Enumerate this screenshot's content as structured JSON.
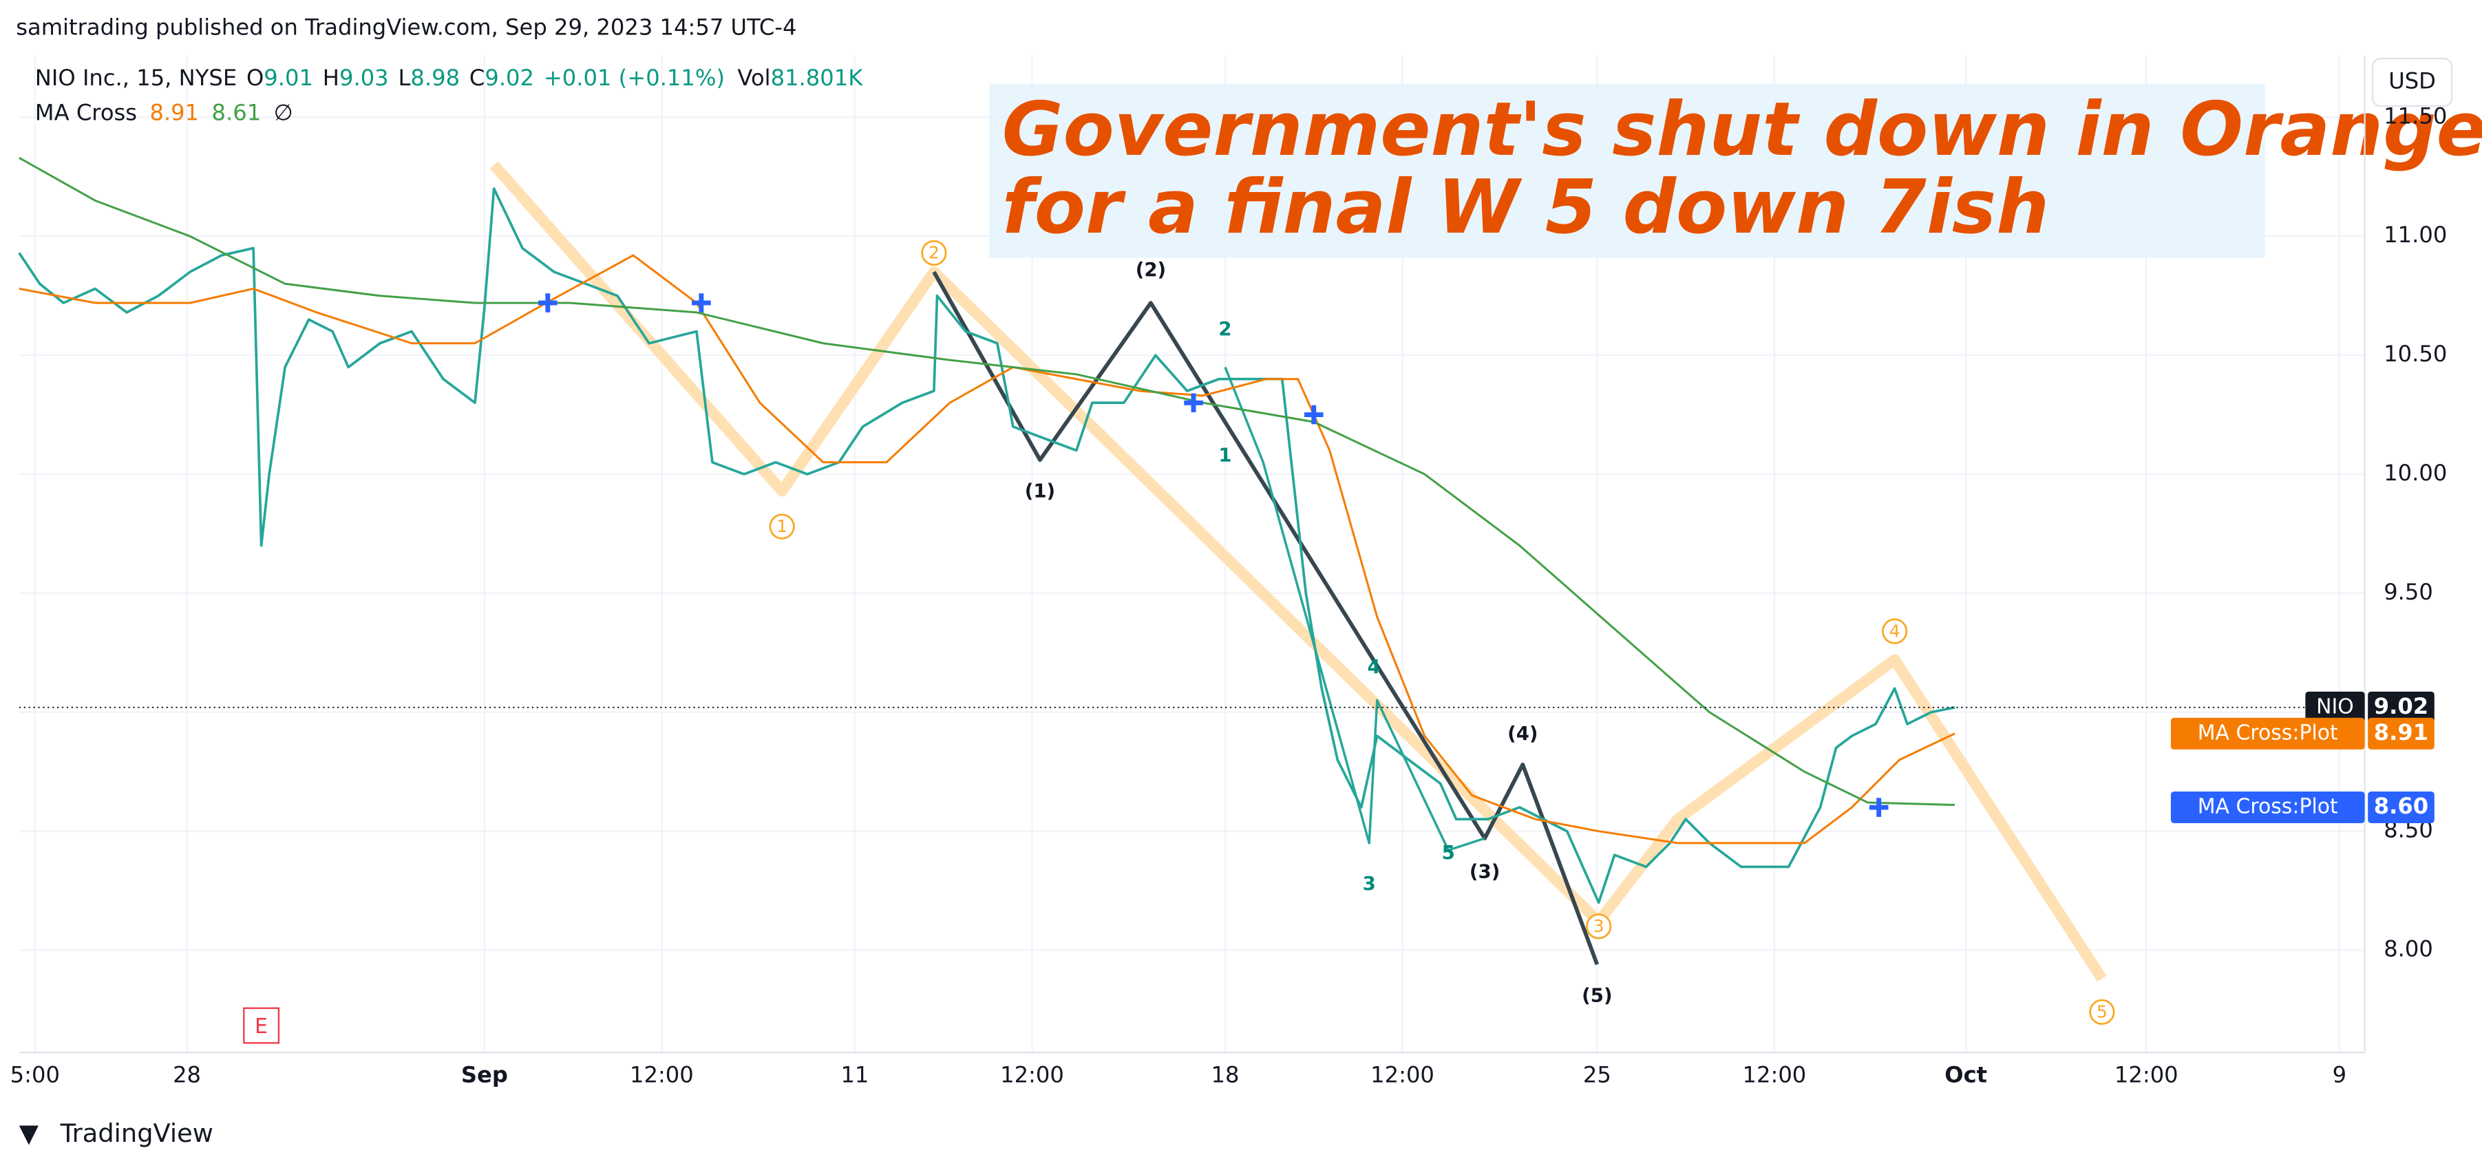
{
  "chart_data": {
    "type": "line",
    "header": "samitrading published on TradingView.com, Sep 29, 2023 14:57 UTC-4",
    "symbol": "NIO Inc., 15, NYSE",
    "ohlc": [
      {
        "key": "O",
        "label": "9.01"
      },
      {
        "key": "H",
        "label": "9.03"
      },
      {
        "key": "L",
        "label": "8.98"
      },
      {
        "key": "C",
        "label": "9.02"
      }
    ],
    "change": "+0.01 (+0.11%)",
    "volume_key": "Vol",
    "volume": "81.801K",
    "indicator": "MA Cross",
    "indicator_values": [
      "8.91",
      "8.61"
    ],
    "indicator_symbol": "∅",
    "title": [
      "Government's shut down in Orange",
      "for a final W 5 down 7ish"
    ],
    "currency": "USD",
    "brand": "TradingView",
    "earnings_marker": "E",
    "xlim": [
      1.2,
      149.2
    ],
    "xticks": [
      {
        "value": 2.2,
        "label": "5:00"
      },
      {
        "value": 11.8,
        "label": "28"
      },
      {
        "value": 30.6,
        "label": "Sep"
      },
      {
        "value": 41.8,
        "label": "12:00"
      },
      {
        "value": 54,
        "label": "11"
      },
      {
        "value": 65.2,
        "label": "12:00"
      },
      {
        "value": 77.4,
        "label": "18"
      },
      {
        "value": 88.6,
        "label": "12:00"
      },
      {
        "value": 100.9,
        "label": "25"
      },
      {
        "value": 112.1,
        "label": "12:00"
      },
      {
        "value": 124.2,
        "label": "Oct"
      },
      {
        "value": 135.6,
        "label": "12:00"
      },
      {
        "value": 147.8,
        "label": "9"
      }
    ],
    "ylim": [
      7.57,
      11.76
    ],
    "yticks": [
      {
        "value": 8,
        "label": "8.00"
      },
      {
        "value": 8.5,
        "label": "8.50"
      },
      {
        "value": 9,
        "label": "9.00"
      },
      {
        "value": 9.5,
        "label": "9.50"
      },
      {
        "value": 10,
        "label": "10.00"
      },
      {
        "value": 10.5,
        "label": "10.50"
      },
      {
        "value": 11,
        "label": "11.00"
      },
      {
        "value": 11.5,
        "label": "11.50"
      }
    ],
    "grid": true,
    "series": [
      {
        "name": "NIO",
        "color": "#26a69a",
        "x": [
          1.2,
          2.5,
          4,
          6,
          8,
          10,
          12,
          14,
          16,
          16.5,
          17,
          18,
          19.5,
          21,
          22,
          24,
          26,
          28,
          30,
          30.6,
          31.2,
          33,
          35,
          37,
          39,
          41,
          44,
          45,
          47,
          49,
          51,
          53,
          54.5,
          57,
          59,
          59.2,
          61,
          63,
          64,
          66,
          68,
          69,
          71,
          73,
          75,
          77,
          79,
          81,
          82.5,
          83.5,
          84.5,
          86,
          87,
          89,
          91,
          92,
          94,
          96,
          99,
          101,
          102,
          104,
          105.5,
          106.5,
          108,
          110,
          113,
          115,
          116,
          117,
          118.5,
          119.7,
          120.5,
          122,
          123.5
        ],
        "values": [
          10.93,
          10.8,
          10.72,
          10.78,
          10.68,
          10.75,
          10.85,
          10.92,
          10.95,
          9.7,
          10.0,
          10.45,
          10.65,
          10.6,
          10.45,
          10.55,
          10.6,
          10.4,
          10.3,
          10.7,
          11.2,
          10.95,
          10.85,
          10.8,
          10.75,
          10.55,
          10.6,
          10.05,
          10.0,
          10.05,
          10.0,
          10.05,
          10.2,
          10.3,
          10.35,
          10.75,
          10.6,
          10.55,
          10.2,
          10.15,
          10.1,
          10.3,
          10.3,
          10.5,
          10.35,
          10.4,
          10.4,
          10.4,
          9.5,
          9.1,
          8.8,
          8.6,
          8.9,
          8.8,
          8.7,
          8.55,
          8.55,
          8.6,
          8.5,
          8.2,
          8.4,
          8.35,
          8.45,
          8.55,
          8.45,
          8.35,
          8.35,
          8.6,
          8.85,
          8.9,
          8.95,
          9.1,
          8.95,
          9.0,
          9.02
        ]
      },
      {
        "name": "MA Cross:Plot",
        "color": "#f57c00",
        "x": [
          1.2,
          6,
          12,
          16,
          20,
          26,
          30,
          34.5,
          40,
          44,
          48,
          52,
          56,
          60,
          64,
          68,
          72,
          76,
          80,
          82,
          84,
          87,
          90,
          93,
          97,
          101,
          106,
          110,
          114,
          117,
          120,
          123.5
        ],
        "values": [
          10.78,
          10.72,
          10.72,
          10.78,
          10.68,
          10.55,
          10.55,
          10.72,
          10.92,
          10.72,
          10.3,
          10.05,
          10.05,
          10.3,
          10.45,
          10.4,
          10.35,
          10.33,
          10.4,
          10.4,
          10.1,
          9.4,
          8.9,
          8.65,
          8.55,
          8.5,
          8.45,
          8.45,
          8.45,
          8.6,
          8.8,
          8.91
        ]
      },
      {
        "name": "MA Cross:Plot",
        "color": "#43a047",
        "x": [
          1.2,
          6,
          12,
          18,
          24,
          30,
          36,
          44,
          52,
          60,
          68,
          76,
          83,
          90,
          96,
          102,
          108,
          114,
          118,
          123.5
        ],
        "values": [
          11.33,
          11.15,
          11.0,
          10.8,
          10.75,
          10.72,
          10.72,
          10.68,
          10.55,
          10.48,
          10.42,
          10.3,
          10.22,
          10.0,
          9.7,
          9.35,
          9.0,
          8.75,
          8.62,
          8.61
        ]
      }
    ],
    "crosses": {
      "color": "#2962ff",
      "x": [
        34.6,
        44.3,
        75.4,
        83,
        118.7
      ],
      "values": [
        10.72,
        10.72,
        10.3,
        10.25,
        8.6
      ]
    },
    "badges": [
      {
        "name": "NIO",
        "value": 9.02,
        "label": "9.02",
        "color": "#131722"
      },
      {
        "name": "MA Cross:Plot",
        "value": 8.91,
        "label": "8.91",
        "color": "#f57c00"
      },
      {
        "name": "MA Cross:Plot",
        "value": 8.6,
        "label": "8.60",
        "color": "#2962ff"
      }
    ],
    "waves": [
      {
        "color": "#ffe0b2",
        "width": 7,
        "x": [
          31.2,
          49.4,
          59,
          101,
          106,
          119.7,
          132.8
        ],
        "values": [
          11.3,
          9.93,
          10.85,
          8.12,
          8.55,
          9.22,
          7.88
        ]
      },
      {
        "color": "#37474f",
        "width": 2.5,
        "x": [
          59,
          65.7,
          72.7,
          93.8,
          96.2,
          100.9
        ],
        "values": [
          10.85,
          10.06,
          10.72,
          8.47,
          8.78,
          7.94
        ]
      },
      {
        "color": "#26a69a",
        "width": 1.5,
        "x": [
          77.4,
          79.8,
          86.5,
          87,
          91.5,
          93.8
        ],
        "values": [
          10.45,
          10.05,
          8.45,
          9.05,
          8.42,
          8.47
        ]
      }
    ],
    "wave_labels": [
      {
        "text": "1",
        "x": 49.4,
        "y": 9.78,
        "style": "circle"
      },
      {
        "text": "2",
        "x": 59,
        "y": 10.93,
        "style": "circle"
      },
      {
        "text": "3",
        "x": 101,
        "y": 8.1,
        "style": "circle"
      },
      {
        "text": "4",
        "x": 119.7,
        "y": 9.34,
        "style": "circle"
      },
      {
        "text": "5",
        "x": 132.8,
        "y": 7.74,
        "style": "circle"
      },
      {
        "text": "(1)",
        "x": 65.7,
        "y": 9.93,
        "style": "dark"
      },
      {
        "text": "(2)",
        "x": 72.7,
        "y": 10.86,
        "style": "dark"
      },
      {
        "text": "(3)",
        "x": 93.8,
        "y": 8.33,
        "style": "dark"
      },
      {
        "text": "(4)",
        "x": 96.2,
        "y": 8.91,
        "style": "dark"
      },
      {
        "text": "(5)",
        "x": 100.9,
        "y": 7.81,
        "style": "dark"
      },
      {
        "text": "1",
        "x": 77.4,
        "y": 10.08,
        "style": "teal"
      },
      {
        "text": "2",
        "x": 77.4,
        "y": 10.61,
        "style": "teal"
      },
      {
        "text": "3",
        "x": 86.5,
        "y": 8.28,
        "style": "teal"
      },
      {
        "text": "4",
        "x": 86.8,
        "y": 9.19,
        "style": "teal"
      },
      {
        "text": "5",
        "x": 91.5,
        "y": 8.41,
        "style": "teal"
      }
    ]
  }
}
